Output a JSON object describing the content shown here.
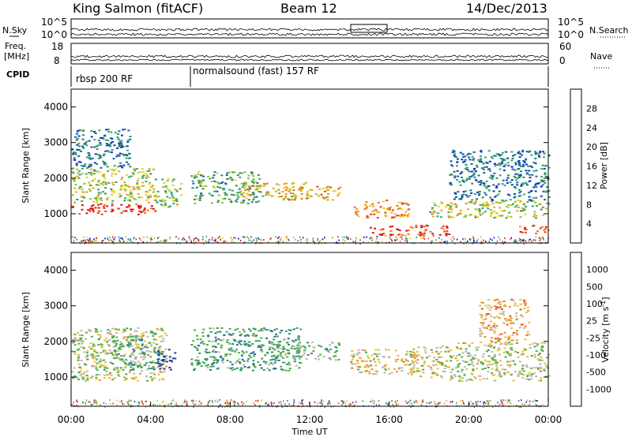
{
  "header": {
    "station": "King Salmon (fitACF)",
    "beam": "Beam 12",
    "date": "14/Dec/2013"
  },
  "strip_panels": {
    "nsky_label": "N.Sky",
    "nsearch_label": "N.Search",
    "freq_label_line1": "Freq.",
    "freq_label_line2": "[MHz]",
    "nave_label": "Nave",
    "cpid_label": "CPID",
    "left_ticks_top": [
      "10^5",
      "10^0"
    ],
    "right_ticks_top": [
      "10^5",
      "10^0"
    ],
    "freq_ticks": [
      "18",
      "8"
    ],
    "nave_ticks": [
      "60",
      "0"
    ]
  },
  "cpid_segments": [
    {
      "start_hour": 0,
      "label": "rbsp 200 RF"
    },
    {
      "start_hour": 6,
      "label": "normalsound (fast) 157 RF"
    }
  ],
  "chart_data": [
    {
      "type": "heatmap",
      "panel": "power",
      "ylabel": "Slant Range [km]",
      "xlabel": "",
      "xlim": [
        0,
        24
      ],
      "ylim": [
        180,
        4500
      ],
      "yticks": [
        "1000",
        "2000",
        "3000",
        "4000"
      ],
      "colorbar_label": "Power [dB]",
      "colorbar_ticks": [
        "28",
        "24",
        "20",
        "16",
        "12",
        "8",
        "4"
      ],
      "colorbar_colors": [
        "#0000ff",
        "#0a3cb4",
        "#1f66a0",
        "#2f8c63",
        "#3aa66e",
        "#92c32a",
        "#e6d21e",
        "#f5a020",
        "#f07020",
        "#e84020",
        "#e01010"
      ],
      "scale": [
        0,
        30
      ],
      "bands": [
        {
          "t0": 0.0,
          "t1": 4.2,
          "r0": 1000,
          "r1": 1300,
          "level": 28
        },
        {
          "t0": 0.0,
          "t1": 4.2,
          "r0": 1300,
          "r1": 2300,
          "level": 16
        },
        {
          "t0": 0.0,
          "t1": 3.0,
          "r0": 2300,
          "r1": 3400,
          "level": 8
        },
        {
          "t0": 4.2,
          "t1": 5.5,
          "r0": 1200,
          "r1": 2000,
          "level": 14
        },
        {
          "t0": 6.0,
          "t1": 9.5,
          "r0": 1300,
          "r1": 2200,
          "level": 12
        },
        {
          "t0": 8.5,
          "t1": 12.0,
          "r0": 1500,
          "r1": 1900,
          "level": 18
        },
        {
          "t0": 10.5,
          "t1": 13.5,
          "r0": 1400,
          "r1": 1800,
          "level": 20
        },
        {
          "t0": 14.0,
          "t1": 17.0,
          "r0": 900,
          "r1": 1400,
          "level": 22
        },
        {
          "t0": 15.0,
          "t1": 19.0,
          "r0": 400,
          "r1": 700,
          "level": 26
        },
        {
          "t0": 18.0,
          "t1": 24.0,
          "r0": 900,
          "r1": 1400,
          "level": 16
        },
        {
          "t0": 19.0,
          "t1": 24.0,
          "r0": 1400,
          "r1": 2800,
          "level": 8
        },
        {
          "t0": 22.5,
          "t1": 24.0,
          "r0": 450,
          "r1": 700,
          "level": 26
        }
      ]
    },
    {
      "type": "heatmap",
      "panel": "velocity",
      "ylabel": "Slant Range [km]",
      "xlabel": "Time UT",
      "xlim": [
        0,
        24
      ],
      "ylim": [
        180,
        4500
      ],
      "xticks": [
        "00:00",
        "04:00",
        "08:00",
        "12:00",
        "16:00",
        "20:00",
        "00:00"
      ],
      "yticks": [
        "1000",
        "2000",
        "3000",
        "4000"
      ],
      "colorbar_label": "Velocity [m s",
      "colorbar_label_sup": "-1",
      "colorbar_label_end": "]",
      "colorbar_ticks": [
        "1000",
        "500",
        "100",
        "25",
        "-25",
        "-100",
        "-500",
        "-1000"
      ],
      "colorbar_colors": [
        "#2040a8",
        "#2f6ea0",
        "#3a9a6a",
        "#50b040",
        "#b8b8b8",
        "#e6c040",
        "#f09020",
        "#f05020",
        "#e01010"
      ],
      "scale": [
        -1000,
        1000
      ],
      "bands": [
        {
          "t0": 0.0,
          "t1": 4.8,
          "r0": 900,
          "r1": 2400,
          "level": 0
        },
        {
          "t0": 2.0,
          "t1": 4.2,
          "r0": 1200,
          "r1": 2200,
          "level": -300
        },
        {
          "t0": 4.2,
          "t1": 5.2,
          "r0": 1200,
          "r1": 1800,
          "level": -900
        },
        {
          "t0": 6.0,
          "t1": 11.5,
          "r0": 1200,
          "r1": 2400,
          "level": -400
        },
        {
          "t0": 10.0,
          "t1": 13.5,
          "r0": 1500,
          "r1": 2000,
          "level": -200
        },
        {
          "t0": 14.0,
          "t1": 17.2,
          "r0": 1100,
          "r1": 1800,
          "level": 150
        },
        {
          "t0": 17.0,
          "t1": 19.0,
          "r0": 1000,
          "r1": 1900,
          "level": 80
        },
        {
          "t0": 19.0,
          "t1": 24.0,
          "r0": 900,
          "r1": 2000,
          "level": 0
        },
        {
          "t0": 20.5,
          "t1": 23.0,
          "r0": 2000,
          "r1": 3200,
          "level": 300
        }
      ]
    }
  ]
}
